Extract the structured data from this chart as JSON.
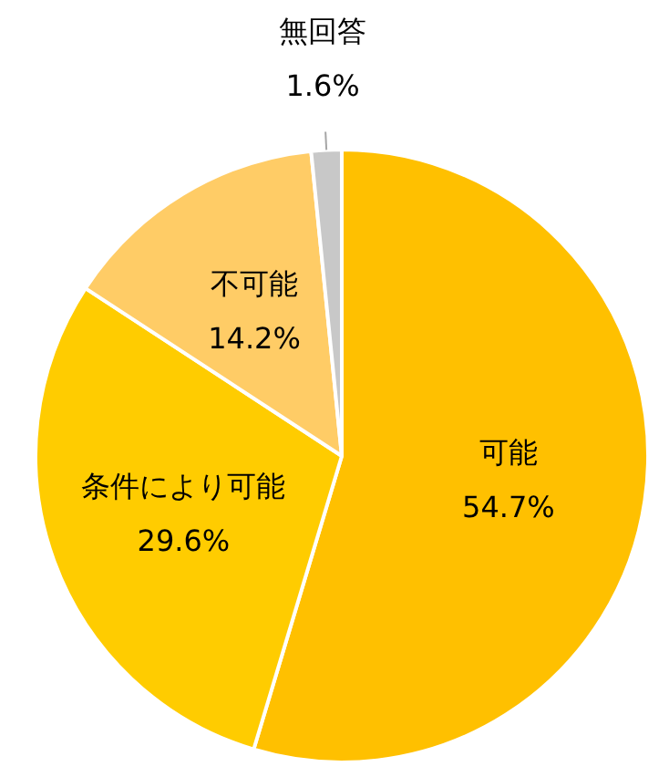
{
  "chart_data": {
    "type": "pie",
    "categories": [
      "可能",
      "条件により可能",
      "不可能",
      "無回答"
    ],
    "values": [
      54.7,
      29.6,
      14.2,
      1.6
    ],
    "colors": [
      "#ffc000",
      "#ffcc00",
      "#ffcc66",
      "#c8c8c8"
    ],
    "value_labels": [
      "54.7%",
      "29.6%",
      "14.2%",
      "1.6%"
    ],
    "legend": false
  }
}
